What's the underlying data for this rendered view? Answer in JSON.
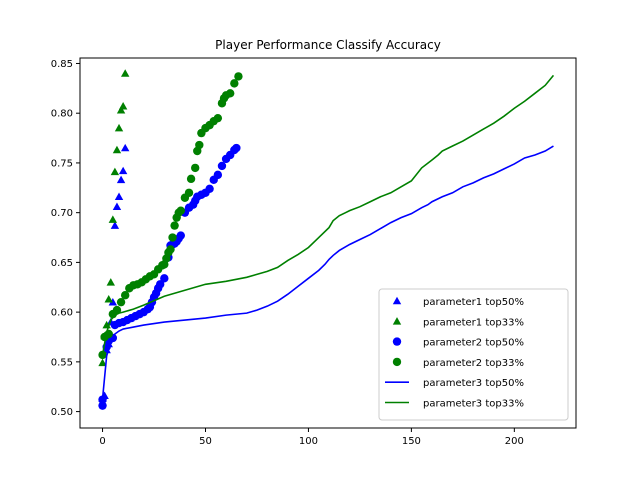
{
  "chart_data": {
    "type": "scatter",
    "title": "Player Performance Classify Accuracy",
    "xlabel": "",
    "ylabel": "",
    "xlim": [
      -10.95,
      229.95
    ],
    "ylim": [
      0.4835,
      0.8555
    ],
    "x_ticks": [
      0,
      50,
      100,
      150,
      200
    ],
    "y_ticks": [
      0.5,
      0.55,
      0.6,
      0.65,
      0.7,
      0.75,
      0.8,
      0.85
    ],
    "x_tick_labels": [
      "0",
      "50",
      "100",
      "150",
      "200"
    ],
    "y_tick_labels": [
      "0.50",
      "0.55",
      "0.60",
      "0.65",
      "0.70",
      "0.75",
      "0.80",
      "0.85"
    ],
    "grid": false,
    "legend_position": "lower right",
    "series": [
      {
        "name": "parameter1 top50%",
        "style": "triangle-marker",
        "color": "#0000ff",
        "x": [
          0,
          1,
          2,
          3,
          4,
          5,
          6,
          7,
          8,
          9,
          10,
          11
        ],
        "y": [
          0.513,
          0.516,
          0.562,
          0.568,
          0.59,
          0.61,
          0.687,
          0.706,
          0.716,
          0.733,
          0.742,
          0.765
        ]
      },
      {
        "name": "parameter1 top33%",
        "style": "triangle-marker",
        "color": "#008000",
        "x": [
          0,
          1,
          2,
          3,
          4,
          5,
          6,
          7,
          8,
          9,
          10,
          11
        ],
        "y": [
          0.549,
          0.576,
          0.587,
          0.613,
          0.63,
          0.693,
          0.741,
          0.763,
          0.785,
          0.803,
          0.807,
          0.84
        ]
      },
      {
        "name": "parameter2 top50%",
        "style": "circle-marker",
        "color": "#0000ff",
        "x": [
          0,
          0,
          2,
          3,
          5,
          6,
          8,
          10,
          12,
          14,
          16,
          18,
          20,
          22,
          23,
          24,
          25,
          26,
          27,
          28,
          30,
          32,
          33,
          34,
          35,
          36,
          37,
          38,
          40,
          42,
          44,
          45,
          46,
          48,
          50,
          52,
          54,
          56,
          58,
          60,
          62,
          64,
          65
        ],
        "y": [
          0.506,
          0.512,
          0.565,
          0.571,
          0.574,
          0.587,
          0.589,
          0.59,
          0.592,
          0.594,
          0.596,
          0.598,
          0.6,
          0.603,
          0.605,
          0.61,
          0.615,
          0.619,
          0.624,
          0.628,
          0.634,
          0.655,
          0.667,
          0.668,
          0.669,
          0.671,
          0.674,
          0.677,
          0.7,
          0.705,
          0.708,
          0.712,
          0.716,
          0.718,
          0.72,
          0.724,
          0.733,
          0.738,
          0.747,
          0.754,
          0.758,
          0.763,
          0.765
        ]
      },
      {
        "name": "parameter2 top33%",
        "style": "circle-marker",
        "color": "#008000",
        "x": [
          0,
          1,
          3,
          5,
          7,
          9,
          11,
          13,
          15,
          17,
          19,
          21,
          23,
          25,
          27,
          29,
          30,
          31,
          32,
          33,
          34,
          35,
          36,
          37,
          38,
          40,
          42,
          43,
          45,
          46,
          47,
          48,
          50,
          52,
          54,
          56,
          58,
          59,
          60,
          62,
          64,
          66
        ],
        "y": [
          0.557,
          0.575,
          0.578,
          0.598,
          0.602,
          0.61,
          0.617,
          0.624,
          0.627,
          0.628,
          0.63,
          0.633,
          0.636,
          0.638,
          0.643,
          0.647,
          0.648,
          0.654,
          0.66,
          0.663,
          0.675,
          0.687,
          0.695,
          0.7,
          0.702,
          0.715,
          0.72,
          0.734,
          0.745,
          0.762,
          0.768,
          0.78,
          0.785,
          0.788,
          0.792,
          0.795,
          0.81,
          0.815,
          0.818,
          0.82,
          0.83,
          0.837
        ]
      },
      {
        "name": "parameter3 top50%",
        "style": "line",
        "color": "#0000ff",
        "x": [
          0,
          2,
          4,
          6,
          8,
          10,
          15,
          20,
          30,
          40,
          50,
          60,
          70,
          75,
          80,
          85,
          90,
          95,
          100,
          105,
          108,
          110,
          112,
          115,
          120,
          125,
          130,
          135,
          140,
          145,
          150,
          155,
          158,
          160,
          165,
          170,
          175,
          180,
          185,
          190,
          195,
          200,
          205,
          210,
          215,
          219
        ],
        "y": [
          0.513,
          0.556,
          0.57,
          0.578,
          0.581,
          0.583,
          0.585,
          0.587,
          0.59,
          0.592,
          0.594,
          0.597,
          0.599,
          0.602,
          0.606,
          0.611,
          0.618,
          0.626,
          0.634,
          0.642,
          0.648,
          0.653,
          0.657,
          0.662,
          0.668,
          0.673,
          0.678,
          0.684,
          0.69,
          0.695,
          0.699,
          0.705,
          0.708,
          0.711,
          0.716,
          0.72,
          0.726,
          0.73,
          0.735,
          0.739,
          0.744,
          0.749,
          0.755,
          0.758,
          0.762,
          0.767
        ]
      },
      {
        "name": "parameter3 top33%",
        "style": "line",
        "color": "#008000",
        "x": [
          0,
          2,
          4,
          6,
          8,
          10,
          15,
          20,
          30,
          40,
          50,
          60,
          70,
          80,
          85,
          90,
          95,
          100,
          105,
          110,
          112,
          115,
          118,
          120,
          125,
          130,
          135,
          140,
          145,
          150,
          155,
          160,
          163,
          165,
          170,
          175,
          180,
          185,
          190,
          195,
          200,
          205,
          210,
          215,
          219
        ],
        "y": [
          0.557,
          0.58,
          0.592,
          0.597,
          0.599,
          0.6,
          0.603,
          0.607,
          0.616,
          0.622,
          0.628,
          0.631,
          0.635,
          0.641,
          0.645,
          0.652,
          0.658,
          0.665,
          0.675,
          0.685,
          0.692,
          0.697,
          0.7,
          0.702,
          0.706,
          0.711,
          0.716,
          0.72,
          0.726,
          0.732,
          0.745,
          0.753,
          0.758,
          0.762,
          0.767,
          0.772,
          0.778,
          0.784,
          0.79,
          0.797,
          0.805,
          0.812,
          0.82,
          0.828,
          0.838
        ]
      }
    ]
  }
}
